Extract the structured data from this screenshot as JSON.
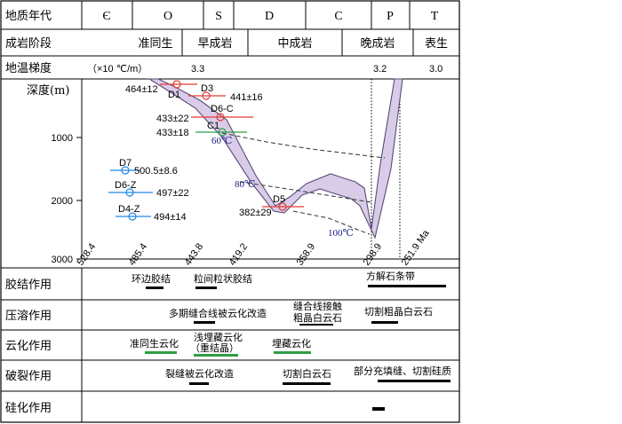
{
  "headers": {
    "era": "地质年代",
    "stage": "成岩阶段",
    "gradient": "地温梯度",
    "depth": "深度(m)",
    "cement": "胶结作用",
    "pressure": "压溶作用",
    "dolomitize": "云化作用",
    "fracture": "破裂作用",
    "silicify": "硅化作用"
  },
  "eras": [
    "Є",
    "O",
    "S",
    "D",
    "C",
    "P",
    "T"
  ],
  "stages": [
    "准同生",
    "早成岩",
    "中成岩",
    "晚成岩",
    "表生"
  ],
  "gradient_row": {
    "unit": "（×10 ℃/m）",
    "values": [
      "3.3",
      "3.2",
      "3.0"
    ]
  },
  "depth_ticks": [
    "1000",
    "2000",
    "3000"
  ],
  "age_ticks": [
    "528.4",
    "485.4",
    "443.8",
    "419.2",
    "358.9",
    "298.9",
    "251.9 Ma"
  ],
  "samples": [
    {
      "id": "D1",
      "age": "464±12"
    },
    {
      "id": "D3",
      "age": "441±16"
    },
    {
      "id": "D6-C",
      "age": "433±22"
    },
    {
      "id": "C1",
      "age": "433±18"
    },
    {
      "id": "D5",
      "age": "382±29"
    },
    {
      "id": "D7",
      "age": "500.5±8.6"
    },
    {
      "id": "D6-Z",
      "age": "497±22"
    },
    {
      "id": "D4-Z",
      "age": "494±14"
    }
  ],
  "isotherms": [
    "60℃",
    "80℃",
    "100℃"
  ],
  "processes": {
    "cement": [
      "环边胶结",
      "粒间粒状胶结",
      "方解石条带"
    ],
    "pressure": [
      "多期缝合线被云化改造",
      "缝合线接触",
      "粗晶白云石",
      "切割粗晶白云石"
    ],
    "dolomitize": [
      "准同生云化",
      "浅埋藏云化",
      "（重结晶）",
      "埋藏云化"
    ],
    "fracture": [
      "裂缝被云化改造",
      "切割白云石",
      "部分充填缝、切割硅质"
    ]
  },
  "colors": {
    "red": "#e53935",
    "green": "#2e9e44",
    "blue": "#1e88e5",
    "band": "#d9cce8",
    "bandStroke": "#5b4a78"
  }
}
